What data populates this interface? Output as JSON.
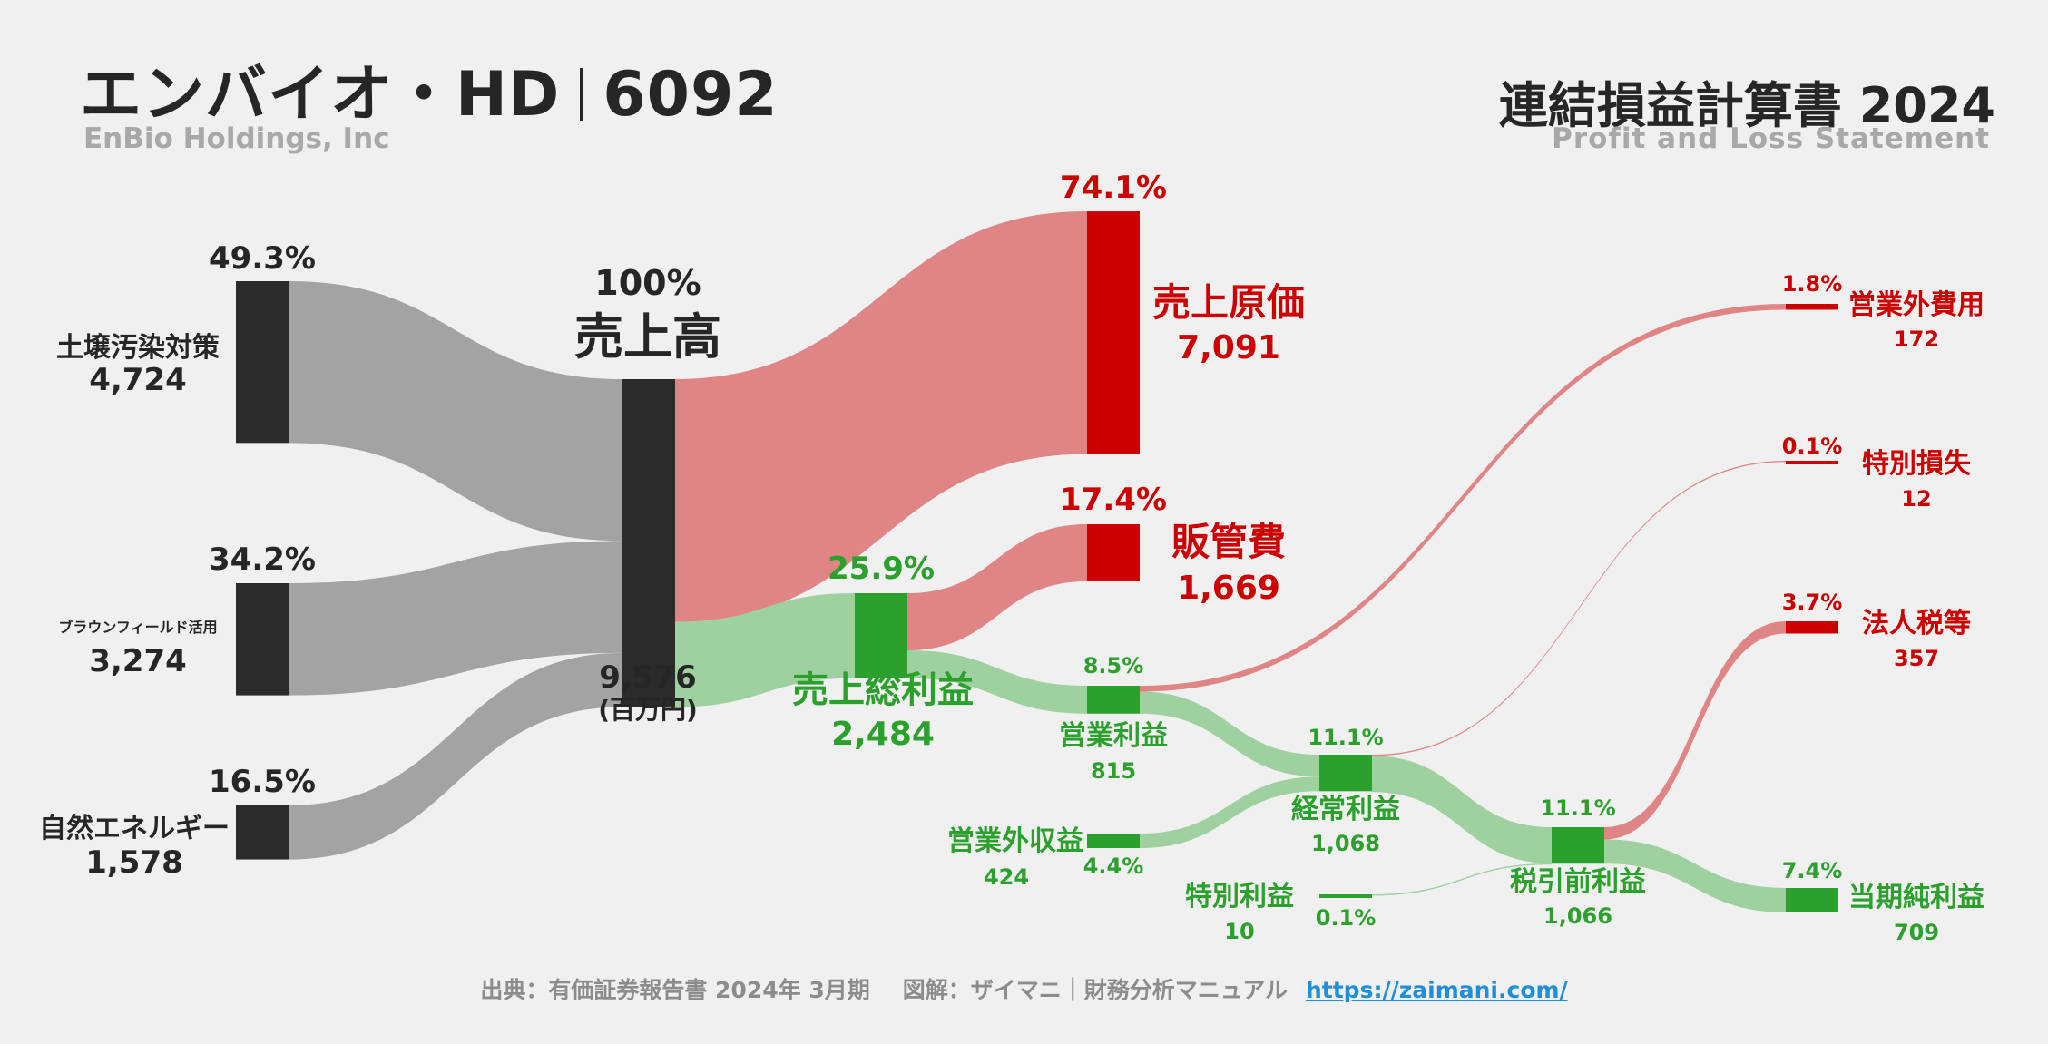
{
  "header": {
    "company": "エンバイオ・HD",
    "code": "6092",
    "company_en": "EnBio Holdings, Inc",
    "statement": "連結損益計算書 2024",
    "statement_en": "Profit and Loss Statement"
  },
  "footer": {
    "source": "出典：有価証券報告書 2024年 3月期",
    "credit": "図解：ザイマニ｜財務分析マニュアル",
    "url": "https://zaimani.com/"
  },
  "colors": {
    "segment_node": "#2b2b2b",
    "segment_flow": "#a3a3a3",
    "cost_node": "#cc0000",
    "cost_flow": "#e08585",
    "profit_node": "#2ca02c",
    "profit_flow": "#9fd09f",
    "background": "#f0f0f0"
  },
  "chart_data": {
    "type": "sankey",
    "unit": "(百万円)",
    "nodes": [
      {
        "id": "seg1",
        "label": "土壌汚染対策",
        "value": 4724,
        "value_label": "4,724",
        "pct": "49.3%",
        "kind": "segment"
      },
      {
        "id": "seg2",
        "label": "ブラウンフィールド活用",
        "value": 3274,
        "value_label": "3,274",
        "pct": "34.2%",
        "kind": "segment"
      },
      {
        "id": "seg3",
        "label": "自然エネルギー",
        "value": 1578,
        "value_label": "1,578",
        "pct": "16.5%",
        "kind": "segment"
      },
      {
        "id": "revenue",
        "label": "売上高",
        "value": 9576,
        "value_label": "9,576",
        "pct": "100%",
        "kind": "segment"
      },
      {
        "id": "cogs",
        "label": "売上原価",
        "value": 7091,
        "value_label": "7,091",
        "pct": "74.1%",
        "kind": "cost"
      },
      {
        "id": "gross",
        "label": "売上総利益",
        "value": 2484,
        "value_label": "2,484",
        "pct": "25.9%",
        "kind": "profit"
      },
      {
        "id": "sga",
        "label": "販管費",
        "value": 1669,
        "value_label": "1,669",
        "pct": "17.4%",
        "kind": "cost"
      },
      {
        "id": "op",
        "label": "営業利益",
        "value": 815,
        "value_label": "815",
        "pct": "8.5%",
        "kind": "profit"
      },
      {
        "id": "nonop_inc",
        "label": "営業外収益",
        "value": 424,
        "value_label": "424",
        "pct": "4.4%",
        "kind": "profit"
      },
      {
        "id": "nonop_exp",
        "label": "営業外費用",
        "value": 172,
        "value_label": "172",
        "pct": "1.8%",
        "kind": "cost"
      },
      {
        "id": "ordinary",
        "label": "経常利益",
        "value": 1068,
        "value_label": "1,068",
        "pct": "11.1%",
        "kind": "profit"
      },
      {
        "id": "ext_gain",
        "label": "特別利益",
        "value": 10,
        "value_label": "10",
        "pct": "0.1%",
        "kind": "profit"
      },
      {
        "id": "ext_loss",
        "label": "特別損失",
        "value": 12,
        "value_label": "12",
        "pct": "0.1%",
        "kind": "cost"
      },
      {
        "id": "pretax",
        "label": "税引前利益",
        "value": 1066,
        "value_label": "1,066",
        "pct": "11.1%",
        "kind": "profit"
      },
      {
        "id": "tax",
        "label": "法人税等",
        "value": 357,
        "value_label": "357",
        "pct": "3.7%",
        "kind": "cost"
      },
      {
        "id": "net",
        "label": "当期純利益",
        "value": 709,
        "value_label": "709",
        "pct": "7.4%",
        "kind": "profit"
      }
    ],
    "links": [
      {
        "source": "seg1",
        "target": "revenue",
        "value": 4724
      },
      {
        "source": "seg2",
        "target": "revenue",
        "value": 3274
      },
      {
        "source": "seg3",
        "target": "revenue",
        "value": 1578
      },
      {
        "source": "revenue",
        "target": "cogs",
        "value": 7091
      },
      {
        "source": "revenue",
        "target": "gross",
        "value": 2484
      },
      {
        "source": "gross",
        "target": "sga",
        "value": 1669
      },
      {
        "source": "gross",
        "target": "op",
        "value": 815
      },
      {
        "source": "op",
        "target": "nonop_exp",
        "value": 172
      },
      {
        "source": "op",
        "target": "ordinary",
        "value": 643
      },
      {
        "source": "nonop_inc",
        "target": "ordinary",
        "value": 424
      },
      {
        "source": "ordinary",
        "target": "ext_loss",
        "value": 12
      },
      {
        "source": "ordinary",
        "target": "pretax",
        "value": 1056
      },
      {
        "source": "ext_gain",
        "target": "pretax",
        "value": 10
      },
      {
        "source": "pretax",
        "target": "tax",
        "value": 357
      },
      {
        "source": "pretax",
        "target": "net",
        "value": 709
      }
    ]
  }
}
